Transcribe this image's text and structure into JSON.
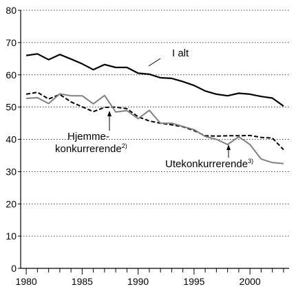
{
  "chart_data": {
    "type": "line",
    "xlim": [
      1979.5,
      2003.5
    ],
    "ylim": [
      0,
      80
    ],
    "yticks": [
      "0",
      "10",
      "20",
      "30",
      "40",
      "50",
      "60",
      "70",
      "80"
    ],
    "xticks": [
      "1980",
      "1985",
      "1990",
      "1995",
      "2000"
    ],
    "grid": "horizontal dotted",
    "series": [
      {
        "name": "I alt",
        "style": "solid-thick",
        "color": "#000000",
        "x": [
          1980,
          1981,
          1982,
          1983,
          1984,
          1985,
          1986,
          1987,
          1988,
          1989,
          1990,
          1991,
          1992,
          1993,
          1994,
          1995,
          1996,
          1997,
          1998,
          1999,
          2000,
          2001,
          2002,
          2003
        ],
        "values": [
          66,
          66.5,
          64.7,
          66.3,
          64.9,
          63.4,
          61.6,
          63.2,
          62.3,
          62.3,
          60.5,
          60.2,
          59.1,
          58.9,
          57.9,
          56.7,
          55.0,
          54.0,
          53.5,
          54.3,
          54.0,
          53.3,
          52.8,
          50.3
        ]
      },
      {
        "name": "Hjemme-konkurrerende",
        "note": "2)",
        "style": "dashed",
        "color": "#000000",
        "x": [
          1980,
          1981,
          1982,
          1983,
          1984,
          1985,
          1986,
          1987,
          1988,
          1989,
          1990,
          1991,
          1992,
          1993,
          1994,
          1995,
          1996,
          1997,
          1998,
          1999,
          2000,
          2001,
          2002,
          2003
        ],
        "values": [
          54.0,
          54.6,
          52.5,
          53.9,
          51.6,
          50.1,
          48.6,
          49.9,
          50.0,
          49.5,
          47.0,
          45.7,
          45.0,
          44.5,
          43.9,
          42.7,
          41.1,
          41.0,
          41.1,
          41.1,
          41.2,
          40.6,
          40.4,
          36.8
        ]
      },
      {
        "name": "Utekonkurrerende",
        "note": "3)",
        "style": "solid-gray",
        "color": "#808080",
        "x": [
          1980,
          1981,
          1982,
          1983,
          1984,
          1985,
          1986,
          1987,
          1988,
          1989,
          1990,
          1991,
          1992,
          1993,
          1994,
          1995,
          1996,
          1997,
          1998,
          1999,
          2000,
          2001,
          2002,
          2003
        ],
        "values": [
          52.7,
          52.9,
          51.1,
          54.1,
          53.5,
          53.5,
          51.0,
          53.6,
          48.5,
          48.9,
          46.4,
          49.0,
          45.0,
          45.0,
          44.0,
          43.0,
          40.9,
          40.0,
          38.4,
          40.8,
          38.4,
          33.9,
          32.8,
          32.5
        ]
      }
    ],
    "labels": {
      "ialt": "I alt",
      "hjemme_line1": "Hjemme-",
      "hjemme_line2": "konkurrerende",
      "hjemme_note": "2)",
      "ute": "Utekonkurrerende",
      "ute_note": "3)"
    }
  }
}
